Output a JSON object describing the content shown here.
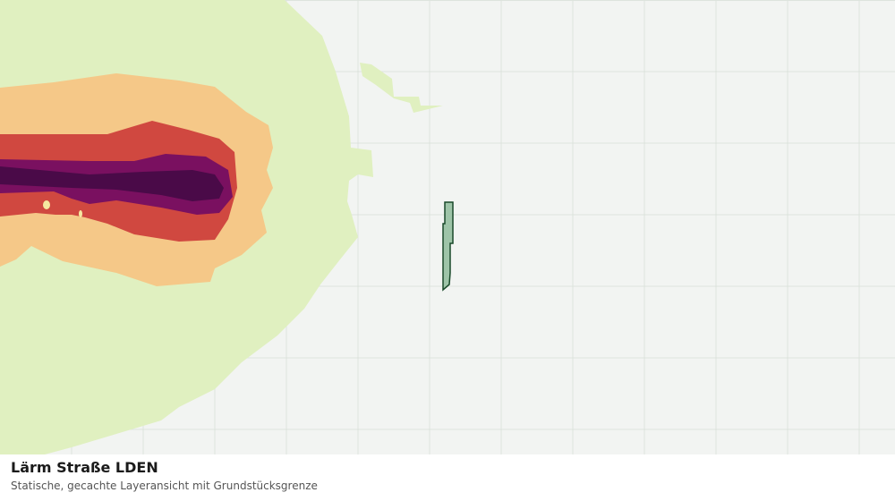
{
  "title": "Lärm Straße LDEN",
  "subtitle": "Statische, gecachte Layeransicht mit Grundstücksgrenze"
}
